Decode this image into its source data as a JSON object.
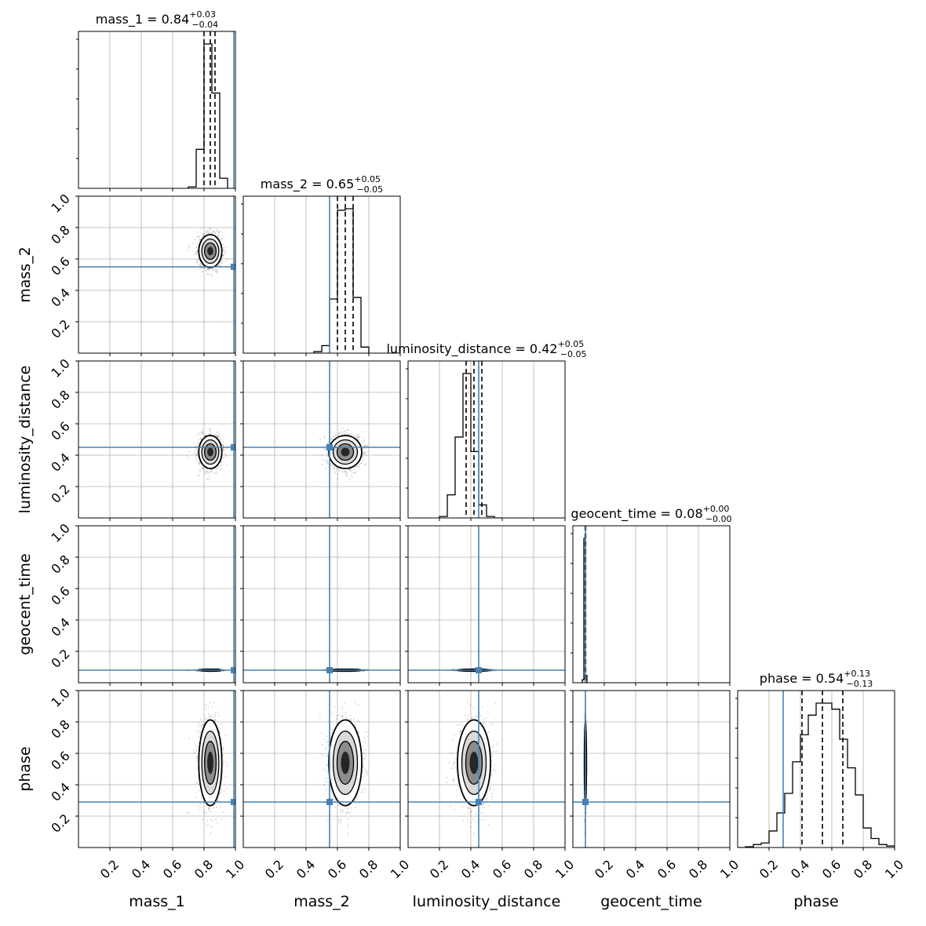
{
  "chart_data": {
    "type": "corner",
    "parameters": [
      "mass_1",
      "mass_2",
      "luminosity_distance",
      "geocent_time",
      "phase"
    ],
    "axis_range": [
      0,
      1
    ],
    "tick_labels": [
      "0.2",
      "0.4",
      "0.6",
      "0.8",
      "1.0"
    ],
    "tick_values": [
      0.2,
      0.4,
      0.6,
      0.8,
      1.0
    ],
    "grid": true,
    "truth_color": "#4682b4",
    "line_color": "#000000",
    "truths": {
      "mass_1": 0.99,
      "mass_2": 0.55,
      "luminosity_distance": 0.45,
      "geocent_time": 0.08,
      "phase": 0.29
    },
    "titles": [
      {
        "param": "mass_1",
        "prefix": "mass_1 = 0.84",
        "plus": "+0.03",
        "minus": "−0.04"
      },
      {
        "param": "mass_2",
        "prefix": "mass_2 = 0.65",
        "plus": "+0.05",
        "minus": "−0.05"
      },
      {
        "param": "luminosity_distance",
        "prefix": "luminosity_distance = 0.42",
        "plus": "+0.05",
        "minus": "−0.05"
      },
      {
        "param": "geocent_time",
        "prefix": "geocent_time = 0.08",
        "plus": "+0.00",
        "minus": "−0.00"
      },
      {
        "param": "phase",
        "prefix": "phase = 0.54",
        "plus": "+0.13",
        "minus": "−0.13"
      }
    ],
    "quantiles": {
      "mass_1": [
        0.8,
        0.84,
        0.87
      ],
      "mass_2": [
        0.6,
        0.65,
        0.7
      ],
      "luminosity_distance": [
        0.37,
        0.42,
        0.47
      ],
      "geocent_time": [
        0.078,
        0.08,
        0.082
      ],
      "phase": [
        0.41,
        0.54,
        0.67
      ]
    },
    "posterior": {
      "mass_1": {
        "mean": 0.84,
        "sd": 0.035
      },
      "mass_2": {
        "mean": 0.65,
        "sd": 0.05
      },
      "luminosity_distance": {
        "mean": 0.42,
        "sd": 0.05
      },
      "geocent_time": {
        "mean": 0.08,
        "sd": 0.003
      },
      "phase": {
        "mean": 0.54,
        "sd": 0.13
      }
    },
    "histograms": {
      "mass_1": {
        "edges": [
          0.7,
          0.75,
          0.8,
          0.85,
          0.9,
          0.95
        ],
        "counts": [
          0.01,
          0.27,
          1.0,
          0.66,
          0.07
        ]
      },
      "mass_2": {
        "edges": [
          0.45,
          0.5,
          0.55,
          0.6,
          0.65,
          0.7,
          0.75,
          0.8
        ],
        "counts": [
          0.01,
          0.05,
          0.36,
          0.95,
          0.96,
          0.37,
          0.04
        ]
      },
      "luminosity_distance": {
        "edges": [
          0.2,
          0.25,
          0.3,
          0.35,
          0.4,
          0.45,
          0.5,
          0.55,
          0.6
        ],
        "counts": [
          0.01,
          0.16,
          0.56,
          1.0,
          0.46,
          0.09,
          0.01,
          0.0
        ]
      },
      "geocent_time": {
        "edges": [
          0.06,
          0.07,
          0.08,
          0.09
        ],
        "counts": [
          0.02,
          1.0,
          0.05
        ]
      },
      "phase": {
        "edges": [
          0.0,
          0.05,
          0.1,
          0.15,
          0.2,
          0.25,
          0.3,
          0.35,
          0.4,
          0.45,
          0.5,
          0.55,
          0.6,
          0.65,
          0.7,
          0.75,
          0.8,
          0.85,
          0.9,
          0.95,
          1.0
        ],
        "counts": [
          0.0,
          0.005,
          0.02,
          0.03,
          0.11,
          0.23,
          0.36,
          0.57,
          0.75,
          0.88,
          0.96,
          0.96,
          0.92,
          0.72,
          0.53,
          0.35,
          0.13,
          0.06,
          0.02,
          0.01
        ]
      }
    }
  }
}
